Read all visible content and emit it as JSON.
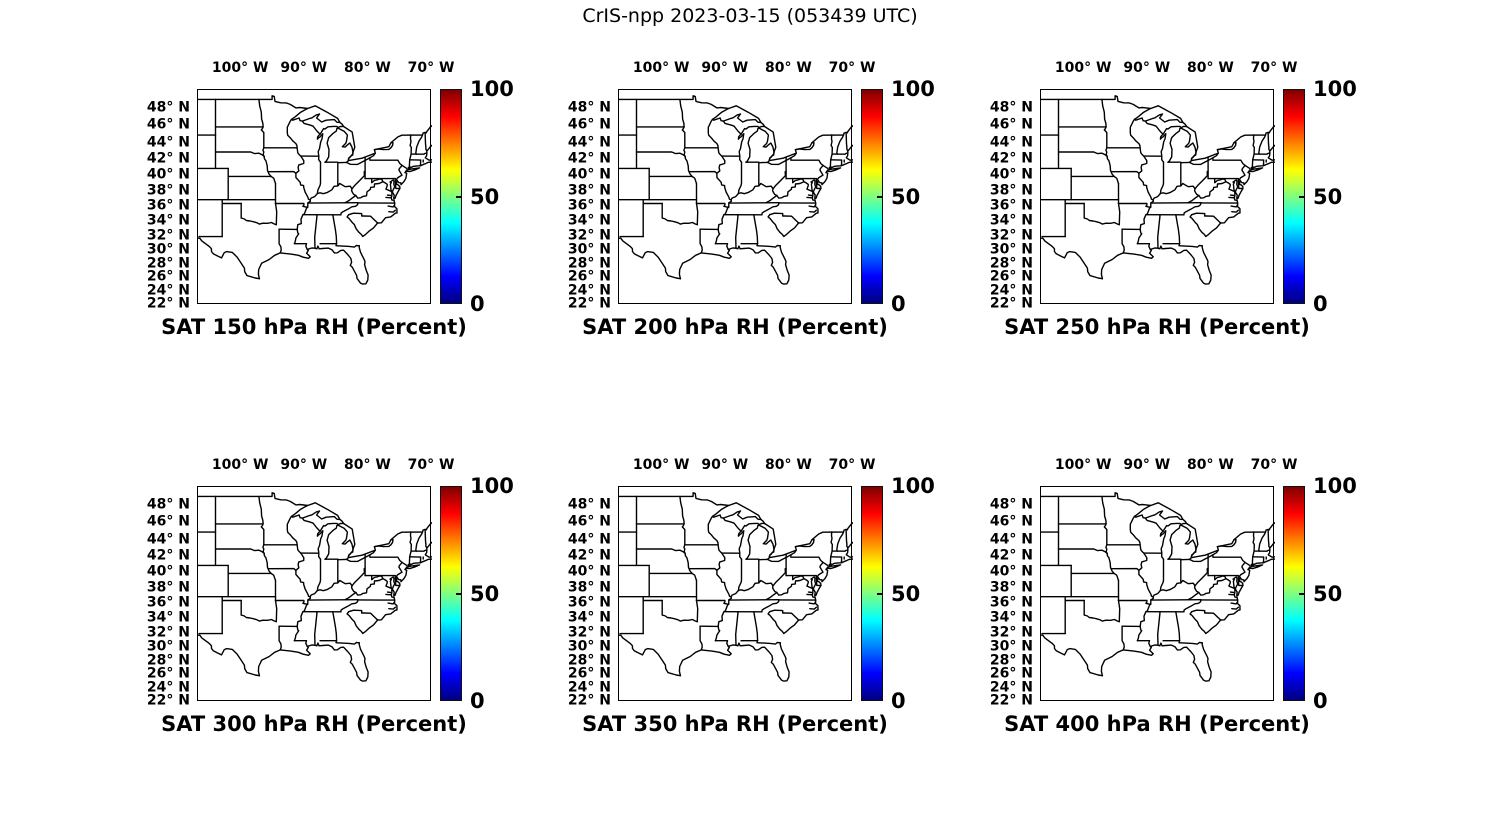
{
  "figure_title": "CrIS-npp 2023-03-15 (053439 UTC)",
  "subplots": [
    {
      "title": "SAT 150 hPa RH (Percent)",
      "level_hPa": 150
    },
    {
      "title": "SAT 200 hPa RH (Percent)",
      "level_hPa": 200
    },
    {
      "title": "SAT 250 hPa RH (Percent)",
      "level_hPa": 250
    },
    {
      "title": "SAT 300 hPa RH (Percent)",
      "level_hPa": 300
    },
    {
      "title": "SAT 350 hPa RH (Percent)",
      "level_hPa": 350
    },
    {
      "title": "SAT 400 hPa RH (Percent)",
      "level_hPa": 400
    }
  ],
  "axes": {
    "lon_ticks": [
      {
        "deg": 100,
        "label": "100° W"
      },
      {
        "deg": 90,
        "label": "90° W"
      },
      {
        "deg": 80,
        "label": "80° W"
      },
      {
        "deg": 70,
        "label": "70° W"
      }
    ],
    "lat_ticks": [
      {
        "deg": 48,
        "label": "48° N"
      },
      {
        "deg": 46,
        "label": "46° N"
      },
      {
        "deg": 44,
        "label": "44° N"
      },
      {
        "deg": 42,
        "label": "42° N"
      },
      {
        "deg": 40,
        "label": "40° N"
      },
      {
        "deg": 38,
        "label": "38° N"
      },
      {
        "deg": 36,
        "label": "36° N"
      },
      {
        "deg": 34,
        "label": "34° N"
      },
      {
        "deg": 32,
        "label": "32° N"
      },
      {
        "deg": 30,
        "label": "30° N"
      },
      {
        "deg": 28,
        "label": "28° N"
      },
      {
        "deg": 26,
        "label": "26° N"
      },
      {
        "deg": 24,
        "label": "24° N"
      },
      {
        "deg": 22,
        "label": "22° N"
      }
    ]
  },
  "colorbar": {
    "min": 0,
    "max": 100,
    "ticks": [
      {
        "value": 100,
        "label": "100"
      },
      {
        "value": 50,
        "label": "50"
      },
      {
        "value": 0,
        "label": "0"
      }
    ],
    "colormap": "jet",
    "gradient_hex": [
      "#000080",
      "#0000ff",
      "#00ffff",
      "#ffff00",
      "#ff0000",
      "#800000"
    ]
  },
  "chart_data": {
    "type": "map",
    "figure_title": "CrIS-npp 2023-03-15 (053439 UTC)",
    "satellite": "CrIS-npp",
    "date": "2023-03-15",
    "time_utc": "053439",
    "layout": "2 rows x 3 columns of identical map panels",
    "panels": [
      {
        "title": "SAT 150 hPa RH (Percent)",
        "pressure_level_hPa": 150,
        "variable": "Relative Humidity (Percent)",
        "colorbar_range": [
          0,
          100
        ],
        "plotted_data_points": "none visible (blank basemap)"
      },
      {
        "title": "SAT 200 hPa RH (Percent)",
        "pressure_level_hPa": 200,
        "variable": "Relative Humidity (Percent)",
        "colorbar_range": [
          0,
          100
        ],
        "plotted_data_points": "none visible (blank basemap)"
      },
      {
        "title": "SAT 250 hPa RH (Percent)",
        "pressure_level_hPa": 250,
        "variable": "Relative Humidity (Percent)",
        "colorbar_range": [
          0,
          100
        ],
        "plotted_data_points": "none visible (blank basemap)"
      },
      {
        "title": "SAT 300 hPa RH (Percent)",
        "pressure_level_hPa": 300,
        "variable": "Relative Humidity (Percent)",
        "colorbar_range": [
          0,
          100
        ],
        "plotted_data_points": "none visible (blank basemap)"
      },
      {
        "title": "SAT 350 hPa RH (Percent)",
        "pressure_level_hPa": 350,
        "variable": "Relative Humidity (Percent)",
        "colorbar_range": [
          0,
          100
        ],
        "plotted_data_points": "none visible (blank basemap)"
      },
      {
        "title": "SAT 400 hPa RH (Percent)",
        "pressure_level_hPa": 400,
        "variable": "Relative Humidity (Percent)",
        "colorbar_range": [
          0,
          100
        ],
        "plotted_data_points": "none visible (blank basemap)"
      }
    ],
    "map_extent": {
      "lon_deg": [
        -106.8,
        -70.0
      ],
      "lat_deg": [
        22,
        50
      ]
    },
    "projection": "mercator",
    "lon_tick_values_deg_w": [
      100,
      90,
      80,
      70
    ],
    "lat_tick_values_deg_n": [
      48,
      46,
      44,
      42,
      40,
      38,
      36,
      34,
      32,
      30,
      28,
      26,
      24,
      22
    ],
    "colormap": "jet",
    "colorbar_tick_values": [
      0,
      50,
      100
    ],
    "basemap": "US state boundaries, black lines on white",
    "grid": "off",
    "legend": "none"
  }
}
